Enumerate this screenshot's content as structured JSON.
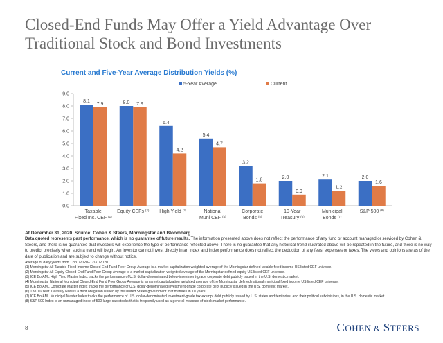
{
  "page": {
    "title": "Closed-End Funds May Offer a Yield Advantage Over Traditional Stock and Bond Investments",
    "page_number": "8",
    "logo_text": "COHEN & STEERS",
    "source_line": "At December 31, 2020. Source: Cohen & Steers, Morningstar and Bloomberg.",
    "disclaimer_bold": "Data quoted represents past performance, which is no guarantee of future results.",
    "disclaimer_text": " The information presented above does not reflect the performance of any fund or account managed or serviced by Cohen & Steers, and there is no guarantee that investors will experience the type of performance reflected above. There is no guarantee that any historical trend illustrated above will be repeated in the future, and there is no way to predict precisely when such a trend will begin. An investor cannot invest directly in an index and index performance does not reflect the deduction of any fees, expenses or taxes. The views and opinions are as of the date of publication and are subject to change without notice.",
    "average_note": "Average of daily yields from 12/31/2020–12/31/2020.",
    "footnotes": [
      "(1) Morningstar All Taxable Fixed Income Closed-End Fund Peer Group Average is a market capitalization weighted average of the Morningstar defined taxable fixed income US listed CEF universe.",
      "(2) Morningstar All Equity Closed-End Fund Peer Group Average is a market capitalization weighted average of the Morningstar defined equity US listed CEF universe.",
      "(3) ICE BofAML High Yield Master Index tracks the performance of U.S. dollar-denominated below-investment-grade corporate debt publicly issued in the U.S. domestic market.",
      "(4) Morningstar National Municipal Closed-End Fund Peer Group Average is a market capitalization weighted average of the Morningstar defined national municipal fixed income US listed CEF universe.",
      "(5) ICE BofAML Corporate Master Index tracks the performance of U.S. dollar-denominated investment-grade corporate debt publicly issued in the U.S. domestic market.",
      "(6) The 10-Year Treasury Note is a debt obligation issued by the United States government that matures in 10 years.",
      "(7) ICE BofAML Municipal Master Index tracks the performance of U.S. dollar-denominated investment-grade tax-exempt debt publicly issued by U.S. states and territories, and their political subdivisions, in the U.S. domestic market.",
      "(8) S&P 500 Index is an unmanaged index of 500 large-cap stocks that is frequently used as a general measure of stock market performance."
    ]
  },
  "chart_data": {
    "type": "bar",
    "title": "Current and Five-Year Average Distribution Yields (%)",
    "ylim": [
      0,
      9
    ],
    "yticks": [
      "0.0",
      "1.0",
      "2.0",
      "3.0",
      "4.0",
      "5.0",
      "6.0",
      "7.0",
      "8.0",
      "9.0"
    ],
    "grid": false,
    "legend_position": "top",
    "categories": [
      {
        "line1": "Taxable",
        "line2": "Fixed Inc. CEF",
        "sup": "(1)"
      },
      {
        "line1": "Equity CEFs",
        "line2": "",
        "sup": "(2)"
      },
      {
        "line1": "High Yield",
        "line2": "",
        "sup": "(3)"
      },
      {
        "line1": "National",
        "line2": "Muni CEF",
        "sup": "(4)"
      },
      {
        "line1": "Corporate",
        "line2": "Bonds",
        "sup": "(5)"
      },
      {
        "line1": "10-Year",
        "line2": "Treasury",
        "sup": "(6)"
      },
      {
        "line1": "Municipal",
        "line2": "Bonds",
        "sup": "(7)"
      },
      {
        "line1": "S&P 500",
        "line2": "",
        "sup": "(8)"
      }
    ],
    "series": [
      {
        "name": "5-Year Average",
        "color": "#3b6fc4",
        "values": [
          8.1,
          8.0,
          6.4,
          5.4,
          3.2,
          2.0,
          2.1,
          2.0
        ],
        "labels": [
          "8.1",
          "8.0",
          "6.4",
          "5.4",
          "3.2",
          "2.0",
          "2.1",
          "2.0"
        ]
      },
      {
        "name": "Current",
        "color": "#e07b47",
        "values": [
          7.9,
          7.9,
          4.2,
          4.7,
          1.8,
          0.9,
          1.2,
          1.6
        ],
        "labels": [
          "7.9",
          "7.9",
          "4.2",
          "4.7",
          "1.8",
          "0.9",
          "1.2",
          "1.6"
        ]
      }
    ]
  }
}
